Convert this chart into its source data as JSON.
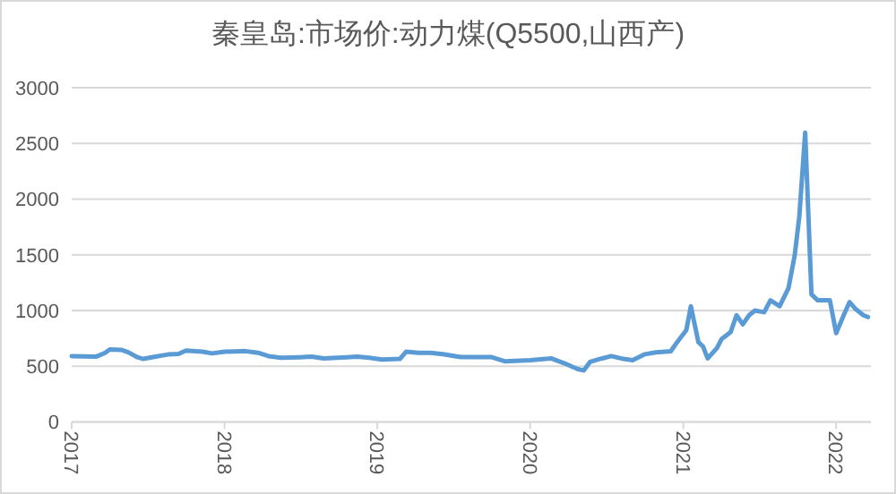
{
  "chart_data": {
    "type": "line",
    "title": "秦皇岛:市场价:动力煤(Q5500,山西产)",
    "x": [
      "2017-01-01",
      "2017-02-28",
      "2017-03-22",
      "2017-04-02",
      "2017-05-01",
      "2017-05-16",
      "2017-06-07",
      "2017-06-21",
      "2017-07-20",
      "2017-08-19",
      "2017-09-13",
      "2017-10-01",
      "2017-11-10",
      "2017-12-02",
      "2018-01-01",
      "2018-02-20",
      "2018-03-22",
      "2018-04-16",
      "2018-05-16",
      "2018-06-29",
      "2018-07-28",
      "2018-08-26",
      "2018-10-19",
      "2018-11-14",
      "2018-12-13",
      "2019-01-12",
      "2019-02-24",
      "2019-03-11",
      "2019-04-09",
      "2019-05-08",
      "2019-06-07",
      "2019-07-20",
      "2019-08-19",
      "2019-10-01",
      "2019-11-03",
      "2020-01-01",
      "2020-02-20",
      "2020-03-22",
      "2020-04-24",
      "2020-05-08",
      "2020-05-23",
      "2020-06-21",
      "2020-07-13",
      "2020-08-11",
      "2020-09-02",
      "2020-10-01",
      "2020-10-27",
      "2020-12-02",
      "2020-12-17",
      "2021-01-08",
      "2021-01-19",
      "2021-02-06",
      "2021-02-17",
      "2021-02-28",
      "2021-03-22",
      "2021-04-02",
      "2021-04-24",
      "2021-05-08",
      "2021-05-23",
      "2021-06-07",
      "2021-06-21",
      "2021-07-13",
      "2021-07-28",
      "2021-08-19",
      "2021-09-09",
      "2021-09-24",
      "2021-10-05",
      "2021-10-19",
      "2021-11-03",
      "2021-11-18",
      "2021-12-17",
      "2022-01-01",
      "2022-01-19",
      "2022-02-02",
      "2022-02-17",
      "2022-03-07",
      "2022-03-18"
    ],
    "series": [
      {
        "color": "#5b9bd5",
        "values": [
          590,
          585,
          620,
          650,
          645,
          625,
          580,
          565,
          585,
          605,
          610,
          640,
          630,
          615,
          630,
          635,
          620,
          590,
          575,
          580,
          585,
          570,
          580,
          585,
          575,
          560,
          565,
          630,
          620,
          620,
          607,
          581,
          581,
          581,
          543,
          554,
          570,
          527,
          473,
          462,
          538,
          570,
          591,
          565,
          554,
          607,
          624,
          634,
          715,
          823,
          1038,
          715,
          677,
          570,
          661,
          742,
          806,
          957,
          876,
          957,
          1000,
          984,
          1091,
          1038,
          1199,
          1495,
          1844,
          2597,
          1145,
          1091,
          1091,
          796,
          957,
          1075,
          1011,
          957,
          941
        ]
      }
    ],
    "xlim": [
      "2017-01-01",
      "2022-03-25"
    ],
    "xticks": [
      {
        "value": "2017-01-01",
        "label": "2017"
      },
      {
        "value": "2018-01-01",
        "label": "2018"
      },
      {
        "value": "2019-01-01",
        "label": "2019"
      },
      {
        "value": "2020-01-01",
        "label": "2020"
      },
      {
        "value": "2021-01-01",
        "label": "2021"
      },
      {
        "value": "2022-01-01",
        "label": "2022"
      }
    ],
    "ylim": [
      0,
      3000
    ],
    "yticks": [
      0,
      500,
      1000,
      1500,
      2000,
      2500,
      3000
    ],
    "grid": "y",
    "line_style": "solid",
    "marker": "none"
  }
}
